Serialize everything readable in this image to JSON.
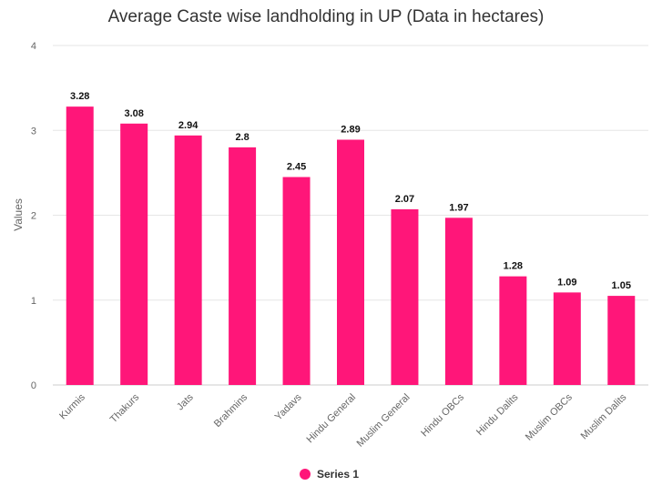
{
  "chart_data": {
    "type": "bar",
    "title": "Average Caste wise landholding in UP (Data in hectares)",
    "xlabel": "",
    "ylabel": "Values",
    "ylim": [
      0,
      4
    ],
    "yticks": [
      0,
      1,
      2,
      3,
      4
    ],
    "categories": [
      "Kurmis",
      "Thakurs",
      "Jats",
      "Brahmins",
      "Yadavs",
      "Hindu General",
      "Muslim General",
      "Hindu OBCs",
      "Hindu Dalits",
      "Muslim OBCs",
      "Muslim Dalits"
    ],
    "series": [
      {
        "name": "Series 1",
        "values": [
          3.28,
          3.08,
          2.94,
          2.8,
          2.45,
          2.89,
          2.07,
          1.97,
          1.28,
          1.09,
          1.05
        ],
        "labels": [
          "3.28",
          "3.08",
          "2.94",
          "2.8",
          "2.45",
          "2.89",
          "2.07",
          "1.97",
          "1.28",
          "1.09",
          "1.05"
        ]
      }
    ],
    "grid": true,
    "legend": "bottom-center",
    "color": "#ff1679"
  }
}
